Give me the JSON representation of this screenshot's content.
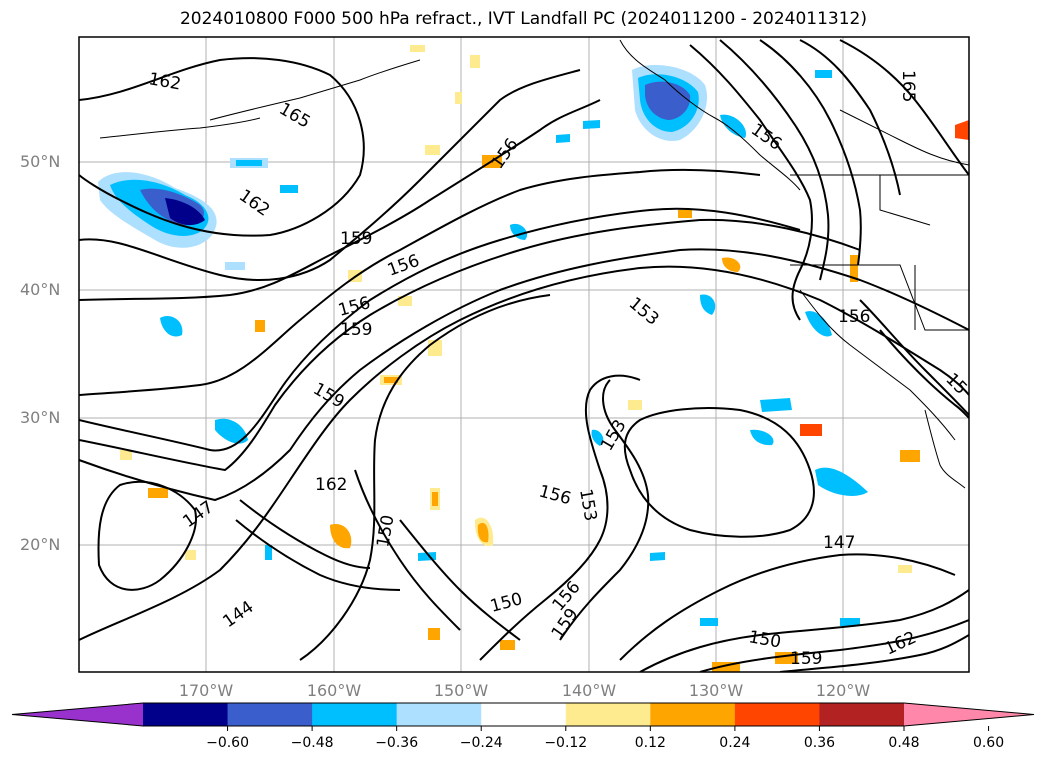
{
  "title": "2024010800 F000 500 hPa refract., IVT Landfall PC (2024011200 - 2024011312)",
  "lat_labels": [
    "50°N",
    "40°N",
    "30°N",
    "20°N"
  ],
  "lon_labels": [
    "170°W",
    "160°W",
    "150°W",
    "140°W",
    "130°W",
    "120°W"
  ],
  "contour_labels": [
    "162",
    "165",
    "162",
    "159",
    "156",
    "156",
    "159",
    "156",
    "153",
    "159",
    "153",
    "162",
    "156",
    "153",
    "147",
    "150",
    "147",
    "144",
    "150",
    "156",
    "159",
    "150",
    "159",
    "162",
    "156",
    "165",
    "15"
  ],
  "colorbar": {
    "ticks": [
      "−0.60",
      "−0.48",
      "−0.36",
      "−0.24",
      "−0.12",
      "0.12",
      "0.24",
      "0.36",
      "0.48",
      "0.60"
    ],
    "colors": [
      "#9932CC",
      "#00008B",
      "#3A5FCD",
      "#00BFFF",
      "#ADDFFF",
      "#FFFFFF",
      "#FFEB8F",
      "#FFA500",
      "#FF4500",
      "#B22222",
      "#FF88AA"
    ]
  }
}
